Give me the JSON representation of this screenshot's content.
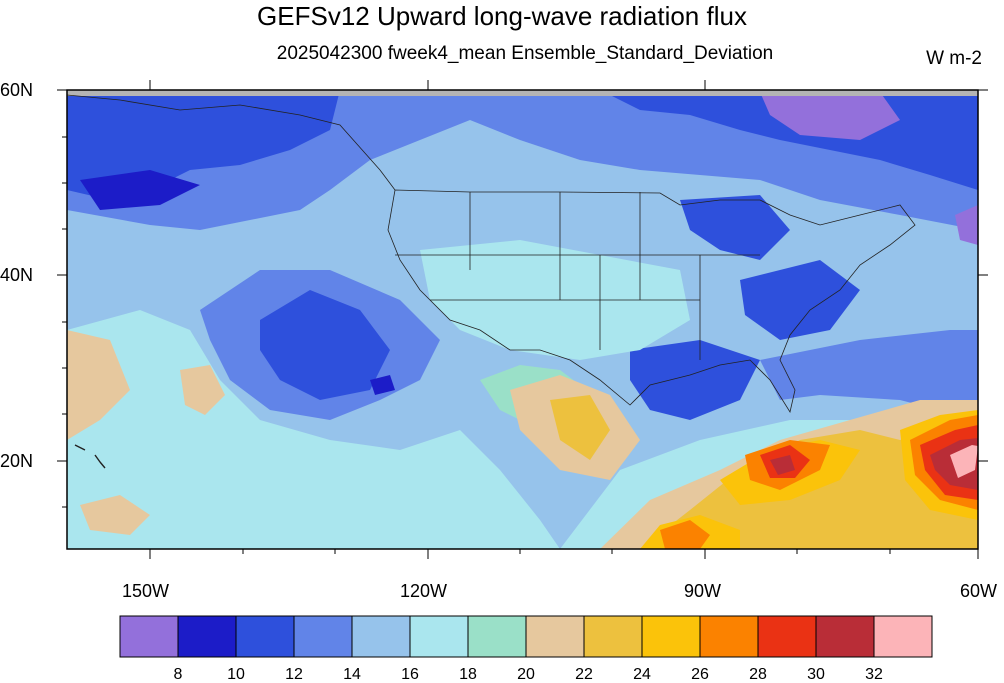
{
  "title": "GEFSv12 Upward long-wave radiation flux",
  "subtitle": "2025042300 fweek4_mean Ensemble_Standard_Deviation",
  "units": "W m-2",
  "map": {
    "lon_range": [
      -160,
      -60
    ],
    "lat_range": [
      10,
      60
    ],
    "lat_labels": [
      "60N",
      "40N",
      "20N"
    ],
    "lon_labels": [
      "150W",
      "120W",
      "90W",
      "60W"
    ],
    "features": [
      "US state boundaries",
      "coastlines",
      "Hawaii"
    ]
  },
  "colorbar": {
    "colors": [
      "#9370db",
      "#1c1cc8",
      "#2e50dc",
      "#6184e8",
      "#96c3eb",
      "#aae6ee",
      "#9ae0c8",
      "#e6c89e",
      "#edc13e",
      "#fbc30a",
      "#fb8200",
      "#ea3214",
      "#b92d37",
      "#fcb4b8"
    ],
    "labels": [
      "8",
      "10",
      "12",
      "14",
      "16",
      "18",
      "20",
      "22",
      "24",
      "26",
      "28",
      "30",
      "32"
    ]
  }
}
